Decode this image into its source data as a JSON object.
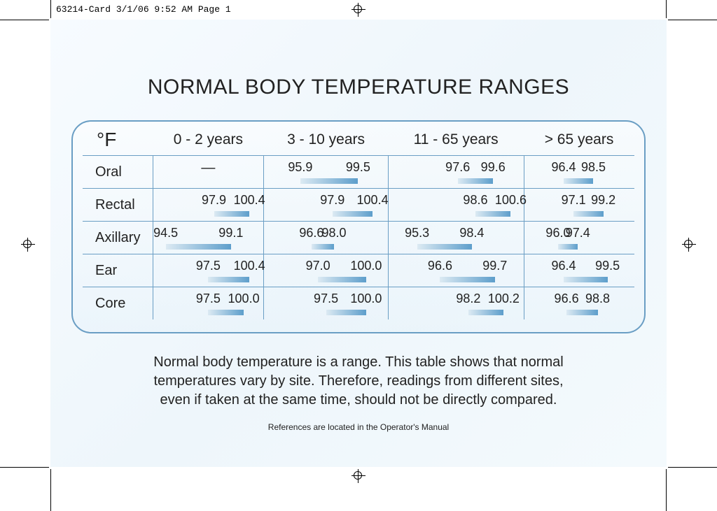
{
  "print_header": "63214-Card  3/1/06  9:52 AM  Page 1",
  "title": "NORMAL BODY TEMPERATURE RANGES",
  "unit_label": "°F",
  "scale": {
    "min": 94.0,
    "max": 101.0
  },
  "colors": {
    "page_bg_from": "#f7fbff",
    "page_bg_to": "#eef6fb",
    "border": "#6a9ec4",
    "bar_from": "#dceaf3",
    "bar_to": "#5d9ecb",
    "text": "#222222"
  },
  "typography": {
    "title_fontsize": 30,
    "header_fontsize": 21,
    "value_fontsize": 18,
    "caption_fontsize": 20,
    "refnote_fontsize": 12,
    "font_family": "Arial Narrow"
  },
  "age_groups": [
    "0  -  2 years",
    "3  -  10 years",
    "11  -  65 years",
    "> 65 years"
  ],
  "rows": [
    {
      "label": "Oral",
      "ranges": [
        null,
        {
          "lo": 95.9,
          "hi": 99.5
        },
        {
          "lo": 97.6,
          "hi": 99.6
        },
        {
          "lo": 96.4,
          "hi": 98.5
        }
      ]
    },
    {
      "label": "Rectal",
      "ranges": [
        {
          "lo": 97.9,
          "hi": 100.4
        },
        {
          "lo": 97.9,
          "hi": 100.4
        },
        {
          "lo": 98.6,
          "hi": 100.6
        },
        {
          "lo": 97.1,
          "hi": 99.2
        }
      ]
    },
    {
      "label": "Axillary",
      "ranges": [
        {
          "lo": 94.5,
          "hi": 99.1
        },
        {
          "lo": 96.6,
          "hi": 98.0
        },
        {
          "lo": 95.3,
          "hi": 98.4
        },
        {
          "lo": 96.0,
          "hi": 97.4
        }
      ]
    },
    {
      "label": "Ear",
      "ranges": [
        {
          "lo": 97.5,
          "hi": 100.4
        },
        {
          "lo": 97.0,
          "hi": 100.0
        },
        {
          "lo": 96.6,
          "hi": 99.7
        },
        {
          "lo": 96.4,
          "hi": 99.5
        }
      ]
    },
    {
      "label": "Core",
      "ranges": [
        {
          "lo": 97.5,
          "hi": 100.0
        },
        {
          "lo": 97.5,
          "hi": 100.0
        },
        {
          "lo": 98.2,
          "hi": 100.2
        },
        {
          "lo": 96.6,
          "hi": 98.8
        }
      ]
    }
  ],
  "caption": "Normal body temperature is a range. This table shows that normal temperatures vary by site. Therefore, readings from different sites, even if taken at the same time, should not be directly compared.",
  "refnote": "References are located in the Operator's Manual"
}
